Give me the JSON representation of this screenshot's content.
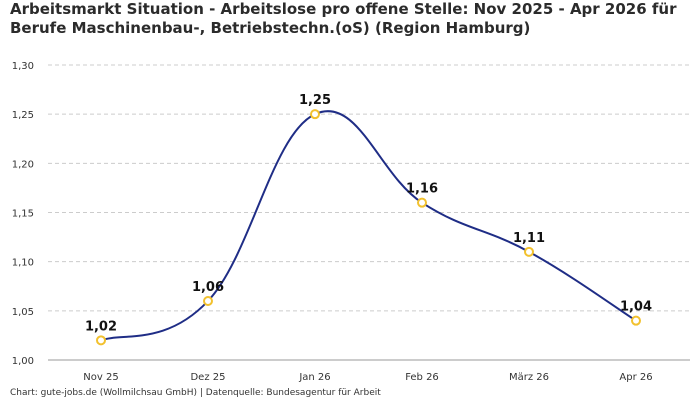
{
  "chart_data": {
    "type": "line",
    "title": "Arbeitsmarkt Situation - Arbeitslose pro offene Stelle: Nov 2025 - Apr 2026 für Berufe Maschinenbau-, Betriebstechn.(oS) (Region Hamburg)",
    "title_lines": [
      "Arbeitsmarkt Situation - Arbeitslose pro offene Stelle: Nov 2025 - Apr 2026 für",
      "Berufe Maschinenbau-, Betriebstechn.(oS) (Region Hamburg)"
    ],
    "categories": [
      "Nov 25",
      "Dez 25",
      "Jan 26",
      "Feb 26",
      "März 26",
      "Apr 26"
    ],
    "values": [
      1.02,
      1.06,
      1.25,
      1.16,
      1.11,
      1.04
    ],
    "data_labels": [
      "1,02",
      "1,06",
      "1,25",
      "1,16",
      "1,11",
      "1,04"
    ],
    "y_ticks": [
      1.0,
      1.05,
      1.1,
      1.15,
      1.2,
      1.25,
      1.3
    ],
    "y_tick_labels": [
      "1,00",
      "1,05",
      "1,10",
      "1,15",
      "1,20",
      "1,25",
      "1,30"
    ],
    "ylim": [
      1.0,
      1.3
    ],
    "grid": true,
    "legend": "none",
    "colors": {
      "line": "#1f2d86",
      "marker_edge": "#f2c12e",
      "marker_fill": "#ffffff",
      "grid": "#cccccc",
      "tick_text": "#333333"
    }
  },
  "footer": "Chart: gute-jobs.de (Wollmilchsau GmbH) | Datenquelle: Bundesagentur für Arbeit"
}
